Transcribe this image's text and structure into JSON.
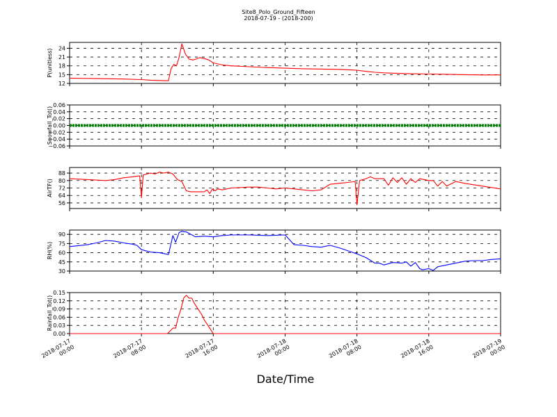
{
  "figure": {
    "title": "Site8_Polo_Ground_Fifteen",
    "subtitle": "2018-07-19 - (2018-200)",
    "xlabel": "Date/Time"
  },
  "x_ticks": [
    {
      "t": 0,
      "line1": "2018-07-17",
      "line2": "00:00"
    },
    {
      "t": 8,
      "line1": "2018-07-17",
      "line2": "08:00"
    },
    {
      "t": 16,
      "line1": "2018-07-17",
      "line2": "16:00"
    },
    {
      "t": 24,
      "line1": "2018-07-18",
      "line2": "00:00"
    },
    {
      "t": 32,
      "line1": "2018-07-18",
      "line2": "08:00"
    },
    {
      "t": 40,
      "line1": "2018-07-18",
      "line2": "16:00"
    },
    {
      "t": 48,
      "line1": "2018-07-19",
      "line2": "00:00"
    }
  ],
  "chart_data": [
    {
      "type": "line",
      "ylabel": "P(unitless)",
      "ylim": [
        12,
        26
      ],
      "yticks": [
        "12",
        "15",
        "18",
        "21",
        "24"
      ],
      "grid": true,
      "color": "#ff0000",
      "x": [
        0,
        6,
        8,
        9,
        10,
        11,
        11.3,
        11.6,
        11.9,
        12.2,
        12.5,
        12.9,
        13.3,
        13.7,
        14,
        14.5,
        15,
        15.5,
        16,
        17,
        18,
        20,
        22,
        24,
        26,
        28,
        30,
        32,
        33,
        34,
        35,
        36,
        38,
        40,
        42,
        44,
        46,
        48
      ],
      "y": [
        13.8,
        13.5,
        13.3,
        13.1,
        13.0,
        12.9,
        17,
        18.5,
        18,
        21,
        25.5,
        22,
        20.3,
        20,
        20.2,
        20.8,
        20.5,
        20,
        19,
        18.3,
        18,
        17.7,
        17.4,
        17.2,
        17.0,
        16.9,
        16.8,
        16.5,
        16.1,
        15.8,
        15.6,
        15.5,
        15.3,
        15.2,
        15.1,
        15.0,
        14.9,
        14.9
      ]
    },
    {
      "type": "line",
      "ylabel": "Snowfall_Tot()",
      "ylim": [
        -0.06,
        0.06
      ],
      "yticks": [
        "−0.06",
        "−0.04",
        "−0.02",
        "0.00",
        "0.02",
        "0.04",
        "0.06"
      ],
      "grid": true,
      "color": "#008000",
      "x": [
        0,
        48
      ],
      "y": [
        0,
        0
      ]
    },
    {
      "type": "line",
      "ylabel": "AirTF()",
      "ylim": [
        50,
        94
      ],
      "yticks": [
        "56",
        "64",
        "72",
        "80",
        "88"
      ],
      "grid": true,
      "color": "#ff0000",
      "x": [
        0,
        2,
        4,
        5,
        6,
        7,
        7.8,
        8,
        8.2,
        9,
        9.5,
        10,
        10.5,
        11,
        11.5,
        12,
        12.5,
        13,
        13.5,
        14,
        15,
        15.3,
        15.6,
        15.9,
        16.2,
        16.5,
        17,
        18,
        20,
        21,
        22,
        23,
        24,
        25,
        26,
        27,
        28,
        29,
        30,
        31,
        31.8,
        32,
        32.3,
        33,
        33.5,
        34,
        35,
        35.5,
        36,
        36.5,
        37,
        37.5,
        38,
        38.5,
        39,
        40,
        40.5,
        41,
        41.5,
        42,
        43,
        44,
        46,
        48
      ],
      "y": [
        82,
        81,
        80,
        81,
        83,
        84,
        85,
        62,
        86,
        88,
        87,
        89,
        88,
        89,
        87,
        81,
        79,
        69,
        68,
        68,
        68,
        70,
        66,
        71,
        69,
        71,
        70,
        72,
        73,
        73,
        72,
        71,
        72,
        71,
        70,
        69,
        70,
        76,
        77,
        78,
        79,
        54,
        80,
        82,
        84,
        82,
        82,
        75,
        83,
        78,
        83,
        76,
        82,
        78,
        82,
        80,
        80,
        74,
        79,
        74,
        79,
        77,
        74,
        71
      ]
    },
    {
      "type": "line",
      "ylabel": "RH(%)",
      "ylim": [
        30,
        97
      ],
      "yticks": [
        "30",
        "45",
        "60",
        "75",
        "90"
      ],
      "grid": true,
      "color": "#0000ff",
      "x": [
        0,
        2,
        3,
        4,
        5,
        6,
        7,
        7.5,
        8,
        9,
        10,
        11,
        11.3,
        11.5,
        11.8,
        12.2,
        12.5,
        12.8,
        13,
        14,
        15,
        16,
        17,
        18,
        20,
        22,
        24,
        25,
        26,
        27,
        28,
        29,
        30,
        31,
        32,
        33,
        34,
        34.5,
        35,
        36,
        37,
        37.5,
        38,
        38.5,
        39,
        39.3,
        40,
        40.5,
        41,
        42,
        43,
        44,
        45,
        46,
        47,
        48
      ],
      "y": [
        70,
        73,
        76,
        80,
        79,
        76,
        74,
        72,
        65,
        61,
        60,
        57,
        75,
        88,
        77,
        93,
        95,
        94,
        94,
        86,
        87,
        86,
        88,
        89,
        89,
        88,
        89,
        73,
        72,
        70,
        69,
        72,
        68,
        63,
        58,
        52,
        43,
        43,
        40,
        44,
        43,
        45,
        38,
        44,
        34,
        32,
        34,
        31,
        37,
        40,
        43,
        46,
        47,
        47,
        49,
        50
      ]
    },
    {
      "type": "line",
      "ylabel": "Rainfall_Tot()",
      "ylim": [
        0,
        0.15
      ],
      "yticks": [
        "0.00",
        "0.03",
        "0.06",
        "0.09",
        "0.12",
        "0.15"
      ],
      "grid": true,
      "color": "#ff0000",
      "x": [
        0,
        10.9,
        11.5,
        11.8,
        12.1,
        12.4,
        12.7,
        13,
        13.3,
        13.6,
        13.9,
        14.3,
        14.7,
        15,
        15.4,
        15.8,
        16,
        48
      ],
      "y": [
        0,
        0,
        0.02,
        0.02,
        0.06,
        0.09,
        0.13,
        0.14,
        0.13,
        0.13,
        0.11,
        0.09,
        0.07,
        0.05,
        0.03,
        0.01,
        0,
        0
      ]
    }
  ]
}
